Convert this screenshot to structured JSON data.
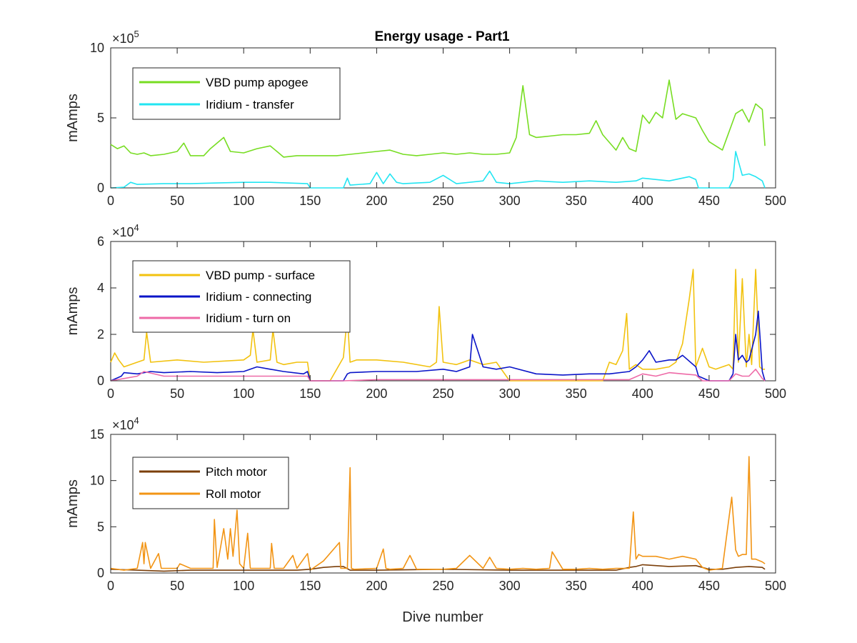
{
  "figure": {
    "title": "Energy usage - Part1",
    "xlabel": "Dive number"
  },
  "chart_data": [
    {
      "type": "line",
      "title": "Energy usage - Part1",
      "xlabel": "",
      "ylabel": "mAmps",
      "xlim": [
        0,
        500
      ],
      "ylim": [
        0,
        10
      ],
      "y_multiplier": "×10^5",
      "y_multiplier_base": "×10",
      "y_multiplier_exp": "5",
      "xticks": [
        0,
        50,
        100,
        150,
        200,
        250,
        300,
        350,
        400,
        450,
        500
      ],
      "yticks": [
        0,
        5,
        10
      ],
      "legend_position": "top-left",
      "grid": false,
      "series": [
        {
          "name": "VBD pump apogee",
          "color": "#77dd22",
          "x": [
            0,
            5,
            10,
            15,
            20,
            25,
            30,
            40,
            50,
            55,
            60,
            70,
            75,
            85,
            90,
            100,
            110,
            120,
            125,
            130,
            140,
            150,
            160,
            170,
            180,
            190,
            200,
            210,
            220,
            230,
            240,
            250,
            260,
            270,
            280,
            290,
            300,
            305,
            310,
            315,
            320,
            330,
            340,
            350,
            360,
            365,
            370,
            380,
            385,
            390,
            395,
            400,
            405,
            410,
            415,
            420,
            425,
            430,
            440,
            445,
            450,
            460,
            470,
            475,
            480,
            485,
            490,
            492
          ],
          "values": [
            3.1,
            2.8,
            3.0,
            2.5,
            2.4,
            2.5,
            2.3,
            2.4,
            2.6,
            3.2,
            2.3,
            2.3,
            2.8,
            3.6,
            2.6,
            2.5,
            2.8,
            3.0,
            2.6,
            2.2,
            2.3,
            2.3,
            2.3,
            2.3,
            2.4,
            2.5,
            2.6,
            2.7,
            2.4,
            2.3,
            2.4,
            2.5,
            2.4,
            2.5,
            2.4,
            2.4,
            2.5,
            3.6,
            7.3,
            3.8,
            3.6,
            3.7,
            3.8,
            3.8,
            3.9,
            4.8,
            3.8,
            2.7,
            3.6,
            2.8,
            2.6,
            5.2,
            4.6,
            5.4,
            5.0,
            7.7,
            4.9,
            5.3,
            5.0,
            4.1,
            3.3,
            2.7,
            5.3,
            5.6,
            4.7,
            6.0,
            5.6,
            3.0
          ]
        },
        {
          "name": "Iridium - transfer",
          "color": "#22e5f2",
          "x": [
            0,
            10,
            15,
            20,
            40,
            60,
            80,
            100,
            120,
            148,
            150,
            175,
            178,
            180,
            195,
            200,
            205,
            210,
            215,
            220,
            240,
            250,
            260,
            280,
            285,
            290,
            300,
            320,
            340,
            360,
            380,
            395,
            400,
            420,
            435,
            440,
            442,
            450,
            465,
            468,
            470,
            475,
            480,
            485,
            490,
            492
          ],
          "values": [
            0.0,
            0.05,
            0.4,
            0.25,
            0.3,
            0.3,
            0.35,
            0.4,
            0.4,
            0.3,
            0.0,
            0.0,
            0.7,
            0.2,
            0.3,
            1.1,
            0.3,
            1.0,
            0.4,
            0.3,
            0.4,
            0.9,
            0.3,
            0.5,
            1.2,
            0.4,
            0.3,
            0.5,
            0.4,
            0.5,
            0.4,
            0.5,
            0.7,
            0.5,
            0.8,
            0.6,
            0.0,
            0.0,
            0.0,
            0.6,
            2.6,
            0.9,
            1.0,
            0.8,
            0.5,
            0.0
          ]
        }
      ]
    },
    {
      "type": "line",
      "title": "",
      "xlabel": "",
      "ylabel": "mAmps",
      "xlim": [
        0,
        500
      ],
      "ylim": [
        0,
        6
      ],
      "y_multiplier": "×10^4",
      "y_multiplier_base": "×10",
      "y_multiplier_exp": "4",
      "xticks": [
        0,
        50,
        100,
        150,
        200,
        250,
        300,
        350,
        400,
        450,
        500
      ],
      "yticks": [
        0,
        2,
        4,
        6
      ],
      "legend_position": "top-left",
      "grid": false,
      "series": [
        {
          "name": "VBD pump - surface",
          "color": "#f2c20f",
          "x": [
            0,
            3,
            6,
            10,
            20,
            25,
            27,
            30,
            50,
            70,
            100,
            105,
            107,
            110,
            120,
            122,
            125,
            130,
            140,
            148,
            150,
            165,
            175,
            178,
            180,
            185,
            200,
            220,
            240,
            245,
            247,
            250,
            260,
            270,
            280,
            290,
            300,
            320,
            340,
            360,
            370,
            375,
            380,
            385,
            388,
            390,
            395,
            400,
            410,
            420,
            425,
            430,
            435,
            438,
            440,
            445,
            450,
            455,
            460,
            465,
            468,
            470,
            472,
            475,
            478,
            480,
            482,
            485,
            488,
            490,
            492
          ],
          "values": [
            0.8,
            1.2,
            0.9,
            0.6,
            0.8,
            0.9,
            2.1,
            0.8,
            0.9,
            0.8,
            0.9,
            1.1,
            2.2,
            0.8,
            0.9,
            2.2,
            0.8,
            0.7,
            0.8,
            0.8,
            0.0,
            0.0,
            1.0,
            2.8,
            0.8,
            0.9,
            0.9,
            0.8,
            0.6,
            0.8,
            3.2,
            0.8,
            0.7,
            0.9,
            0.7,
            0.8,
            0.0,
            0.0,
            0.0,
            0.0,
            0.0,
            0.8,
            0.7,
            1.3,
            2.9,
            0.5,
            0.7,
            0.5,
            0.5,
            0.6,
            0.8,
            1.6,
            3.5,
            4.8,
            0.6,
            1.4,
            0.6,
            0.5,
            0.6,
            0.7,
            0.5,
            4.8,
            0.8,
            4.4,
            0.6,
            2.0,
            0.7,
            4.8,
            0.6,
            0.5,
            0.5
          ]
        },
        {
          "name": "Iridium - connecting",
          "color": "#0a14c8",
          "x": [
            0,
            8,
            10,
            20,
            30,
            40,
            60,
            80,
            100,
            110,
            120,
            130,
            145,
            148,
            150,
            175,
            178,
            180,
            200,
            230,
            250,
            260,
            270,
            272,
            280,
            290,
            300,
            320,
            340,
            360,
            375,
            390,
            395,
            400,
            405,
            410,
            420,
            425,
            430,
            440,
            442,
            450,
            465,
            468,
            470,
            472,
            475,
            478,
            480,
            485,
            487,
            490,
            492
          ],
          "values": [
            0.0,
            0.2,
            0.35,
            0.3,
            0.4,
            0.35,
            0.4,
            0.35,
            0.4,
            0.6,
            0.5,
            0.4,
            0.3,
            0.4,
            0.0,
            0.0,
            0.3,
            0.35,
            0.4,
            0.4,
            0.5,
            0.4,
            0.6,
            2.0,
            0.6,
            0.5,
            0.6,
            0.3,
            0.25,
            0.3,
            0.3,
            0.4,
            0.6,
            0.9,
            1.3,
            0.8,
            0.9,
            0.9,
            1.1,
            0.6,
            0.2,
            0.0,
            0.0,
            0.3,
            2.0,
            0.9,
            1.1,
            0.8,
            0.9,
            2.0,
            3.0,
            0.4,
            0.0
          ]
        },
        {
          "name": "Iridium - turn on",
          "color": "#ee6aa7",
          "x": [
            0,
            10,
            20,
            25,
            40,
            60,
            80,
            100,
            120,
            148,
            150,
            175,
            200,
            250,
            300,
            350,
            390,
            400,
            410,
            420,
            430,
            440,
            445,
            465,
            470,
            475,
            480,
            485,
            490,
            492
          ],
          "values": [
            0.0,
            0.1,
            0.2,
            0.4,
            0.2,
            0.2,
            0.2,
            0.2,
            0.2,
            0.2,
            0.0,
            0.0,
            0.05,
            0.05,
            0.05,
            0.05,
            0.05,
            0.3,
            0.2,
            0.35,
            0.3,
            0.25,
            0.0,
            0.0,
            0.3,
            0.2,
            0.2,
            0.5,
            0.1,
            0.0
          ]
        }
      ]
    },
    {
      "type": "line",
      "title": "",
      "xlabel": "Dive number",
      "ylabel": "mAmps",
      "xlim": [
        0,
        500
      ],
      "ylim": [
        0,
        15
      ],
      "y_multiplier": "×10^4",
      "y_multiplier_base": "×10",
      "y_multiplier_exp": "4",
      "xticks": [
        0,
        50,
        100,
        150,
        200,
        250,
        300,
        350,
        400,
        450,
        500
      ],
      "yticks": [
        0,
        5,
        10,
        15
      ],
      "legend_position": "top-left",
      "grid": false,
      "series": [
        {
          "name": "Pitch motor",
          "color": "#7b3f0a",
          "x": [
            0,
            20,
            40,
            60,
            80,
            100,
            120,
            140,
            150,
            160,
            170,
            175,
            180,
            200,
            250,
            300,
            350,
            380,
            390,
            395,
            400,
            420,
            440,
            450,
            460,
            470,
            480,
            490,
            492
          ],
          "values": [
            0.4,
            0.3,
            0.2,
            0.3,
            0.3,
            0.3,
            0.3,
            0.3,
            0.4,
            0.6,
            0.7,
            0.7,
            0.3,
            0.3,
            0.4,
            0.3,
            0.3,
            0.3,
            0.6,
            0.7,
            0.9,
            0.7,
            0.8,
            0.4,
            0.4,
            0.6,
            0.7,
            0.6,
            0.4
          ]
        },
        {
          "name": "Roll motor",
          "color": "#f29414",
          "x": [
            0,
            10,
            20,
            24,
            25,
            26,
            30,
            36,
            38,
            50,
            52,
            60,
            65,
            77,
            78,
            80,
            85,
            88,
            90,
            92,
            95,
            97,
            100,
            103,
            105,
            110,
            120,
            121,
            123,
            130,
            137,
            140,
            148,
            150,
            160,
            172,
            173,
            178,
            180,
            181,
            183,
            200,
            205,
            207,
            210,
            220,
            225,
            230,
            240,
            250,
            260,
            270,
            280,
            285,
            290,
            300,
            310,
            320,
            330,
            332,
            340,
            350,
            360,
            370,
            380,
            390,
            393,
            395,
            397,
            400,
            410,
            420,
            430,
            440,
            445,
            450,
            460,
            465,
            467,
            470,
            472,
            475,
            478,
            480,
            482,
            485,
            490,
            492
          ],
          "values": [
            0.5,
            0.3,
            0.5,
            3.3,
            1.0,
            3.3,
            0.5,
            2.1,
            0.5,
            0.5,
            1.0,
            0.5,
            0.5,
            0.5,
            5.8,
            0.6,
            4.8,
            1.5,
            4.8,
            1.8,
            6.8,
            1.0,
            0.5,
            4.3,
            0.5,
            0.5,
            0.5,
            3.2,
            0.5,
            0.5,
            1.9,
            0.5,
            2.1,
            0.3,
            1.3,
            3.3,
            0.5,
            0.5,
            11.4,
            0.5,
            0.4,
            0.5,
            2.6,
            0.5,
            0.4,
            0.5,
            1.9,
            0.4,
            0.4,
            0.4,
            0.5,
            1.9,
            0.5,
            1.7,
            0.5,
            0.4,
            0.5,
            0.4,
            0.5,
            2.3,
            0.4,
            0.4,
            0.5,
            0.4,
            0.5,
            0.5,
            6.6,
            1.5,
            2.0,
            1.8,
            1.8,
            1.5,
            1.8,
            1.5,
            0.6,
            0.3,
            0.5,
            6.0,
            8.2,
            2.5,
            1.8,
            2.0,
            2.0,
            12.6,
            1.5,
            1.5,
            1.2,
            1.0
          ]
        }
      ]
    }
  ]
}
